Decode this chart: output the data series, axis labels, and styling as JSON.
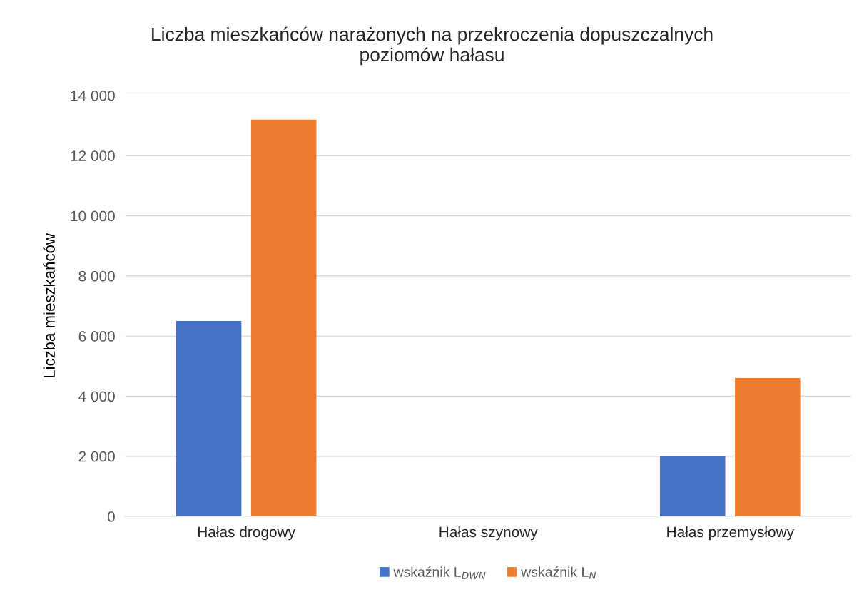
{
  "chart_data": {
    "type": "bar",
    "title": "Liczba mieszkańców narażonych na przekroczenia dopuszczalnych\npoziomów hałasu",
    "ylabel": "Liczba mieszkańców",
    "categories": [
      "Hałas drogowy",
      "Hałas szynowy",
      "Hałas przemysłowy"
    ],
    "series": [
      {
        "name": "wskaźnik L$_{DWN}$",
        "color": "#4472c4",
        "values": [
          6500,
          0,
          2000
        ]
      },
      {
        "name": "wskaźnik L$_{N}$",
        "color": "#ed7d31",
        "values": [
          13200,
          0,
          4600
        ]
      }
    ],
    "ylim": [
      0,
      14000
    ],
    "yticks": [
      0,
      {
        "value": 2000,
        "label": "2 000"
      },
      {
        "value": 4000,
        "label": "4 000"
      },
      {
        "value": 6000,
        "label": "6 000"
      },
      {
        "value": 8000,
        "label": "8 000"
      },
      {
        "value": 10000,
        "label": "10 000"
      },
      {
        "value": 12000,
        "label": "12 000"
      },
      {
        "value": 14000,
        "label": "14 000"
      }
    ],
    "grid": "y",
    "legend": "bottom"
  }
}
